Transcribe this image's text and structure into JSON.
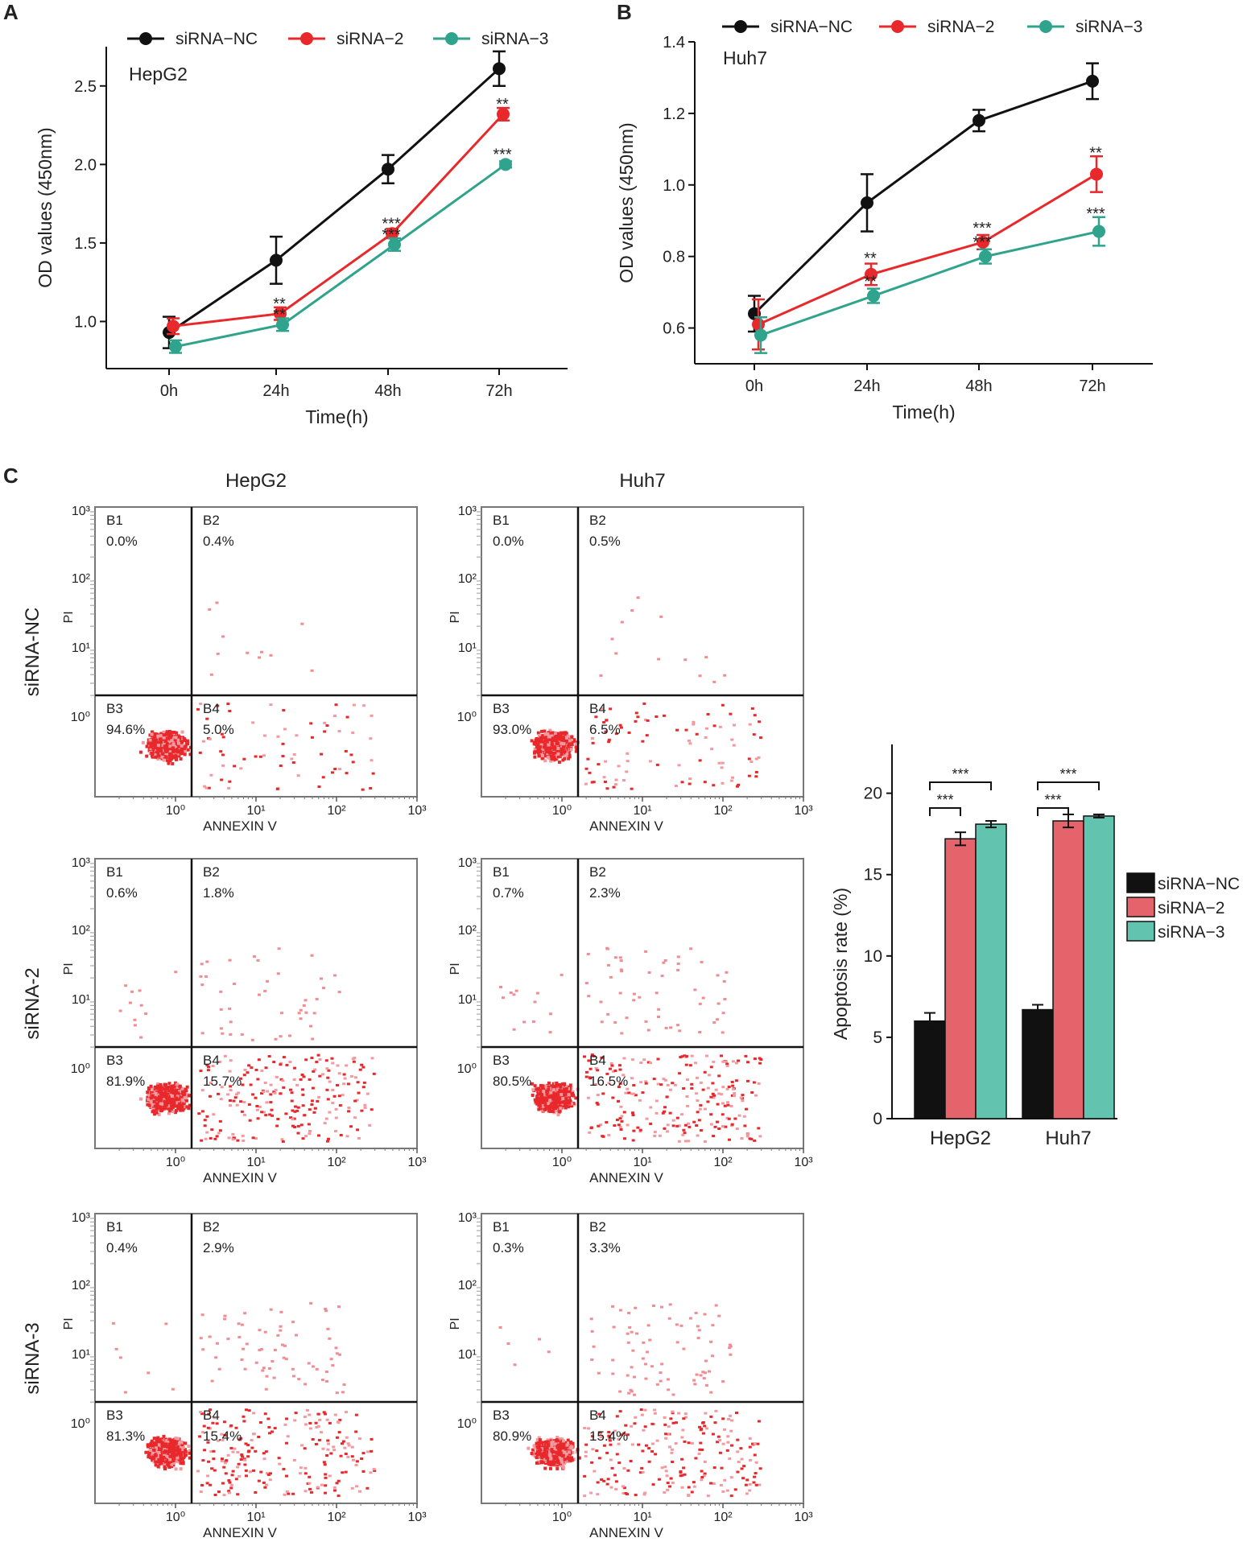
{
  "chart_data": [
    {
      "id": "A",
      "type": "line",
      "panel_label": "A",
      "cell_line": "HepG2",
      "xlabel": "Time(h)",
      "ylabel": "OD values (450nm)",
      "categories": [
        "0h",
        "24h",
        "48h",
        "72h"
      ],
      "ylim": [
        0.7,
        2.75
      ],
      "yticks": [
        1.0,
        1.5,
        2.0,
        2.5
      ],
      "ytick_labels": [
        "1.0",
        "1.5",
        "2.0",
        "2.5"
      ],
      "series": [
        {
          "name": "siRNA−NC",
          "color": "#111111",
          "values": [
            0.93,
            1.39,
            1.97,
            2.61
          ],
          "err": [
            0.1,
            0.15,
            0.09,
            0.11
          ]
        },
        {
          "name": "siRNA−2",
          "color": "#e8282b",
          "values": [
            0.97,
            1.05,
            1.56,
            2.32
          ],
          "err": [
            0.05,
            0.04,
            0.03,
            0.04
          ]
        },
        {
          "name": "siRNA−3",
          "color": "#2fa38c",
          "values": [
            0.84,
            0.98,
            1.49,
            2.0
          ],
          "err": [
            0.04,
            0.04,
            0.04,
            0.02
          ]
        }
      ],
      "annotations": [
        {
          "x": "24h",
          "y": 1.08,
          "text": "**"
        },
        {
          "x": "24h",
          "y": 1.01,
          "text": "**"
        },
        {
          "x": "48h",
          "y": 1.59,
          "text": "***"
        },
        {
          "x": "48h",
          "y": 1.52,
          "text": "***"
        },
        {
          "x": "72h",
          "y": 2.35,
          "text": "**"
        },
        {
          "x": "72h",
          "y": 2.03,
          "text": "***"
        }
      ]
    },
    {
      "id": "B",
      "type": "line",
      "panel_label": "B",
      "cell_line": "Huh7",
      "xlabel": "Time(h)",
      "ylabel": "OD values (450nm)",
      "categories": [
        "0h",
        "24h",
        "48h",
        "72h"
      ],
      "ylim": [
        0.5,
        1.4
      ],
      "yticks": [
        0.6,
        0.8,
        1.0,
        1.2,
        1.4
      ],
      "ytick_labels": [
        "0.6",
        "0.8",
        "1.0",
        "1.2",
        "1.4"
      ],
      "series": [
        {
          "name": "siRNA−NC",
          "color": "#111111",
          "values": [
            0.64,
            0.95,
            1.18,
            1.29
          ],
          "err": [
            0.05,
            0.08,
            0.03,
            0.05
          ]
        },
        {
          "name": "siRNA−2",
          "color": "#e8282b",
          "values": [
            0.61,
            0.75,
            0.84,
            1.03
          ],
          "err": [
            0.07,
            0.03,
            0.02,
            0.05
          ]
        },
        {
          "name": "siRNA−3",
          "color": "#2fa38c",
          "values": [
            0.58,
            0.69,
            0.8,
            0.87
          ],
          "err": [
            0.05,
            0.02,
            0.02,
            0.04
          ]
        }
      ],
      "annotations": [
        {
          "x": "24h",
          "y": 0.78,
          "text": "**"
        },
        {
          "x": "24h",
          "y": 0.715,
          "text": "**"
        },
        {
          "x": "48h",
          "y": 0.865,
          "text": "***"
        },
        {
          "x": "48h",
          "y": 0.825,
          "text": "***"
        },
        {
          "x": "72h",
          "y": 1.075,
          "text": "**"
        },
        {
          "x": "72h",
          "y": 0.905,
          "text": "***"
        }
      ]
    },
    {
      "id": "C-flow",
      "type": "scatter",
      "panel_label": "C",
      "columns": [
        "HepG2",
        "Huh7"
      ],
      "rows": [
        "siRNA-NC",
        "siRNA-2",
        "siRNA-3"
      ],
      "xlabel": "ANNEXIN V",
      "ylabel": "PI",
      "x_decades": [
        "10⁰",
        "10¹",
        "10²",
        "10³"
      ],
      "y_decades": [
        "10⁰",
        "10¹",
        "10²",
        "10³"
      ],
      "quadrant_names": [
        "B1",
        "B2",
        "B3",
        "B4"
      ],
      "plots": [
        {
          "row": "siRNA-NC",
          "col": "HepG2",
          "B1": "0.0%",
          "B2": "0.4%",
          "B3": "94.6%",
          "B4": "5.0%"
        },
        {
          "row": "siRNA-NC",
          "col": "Huh7",
          "B1": "0.0%",
          "B2": "0.5%",
          "B3": "93.0%",
          "B4": "6.5%"
        },
        {
          "row": "siRNA-2",
          "col": "HepG2",
          "B1": "0.6%",
          "B2": "1.8%",
          "B3": "81.9%",
          "B4": "15.7%"
        },
        {
          "row": "siRNA-2",
          "col": "Huh7",
          "B1": "0.7%",
          "B2": "2.3%",
          "B3": "80.5%",
          "B4": "16.5%"
        },
        {
          "row": "siRNA-3",
          "col": "HepG2",
          "B1": "0.4%",
          "B2": "2.9%",
          "B3": "81.3%",
          "B4": "15.4%"
        },
        {
          "row": "siRNA-3",
          "col": "Huh7",
          "B1": "0.3%",
          "B2": "3.3%",
          "B3": "80.9%",
          "B4": "15.4%"
        }
      ]
    },
    {
      "id": "C-bar",
      "type": "bar",
      "ylabel": "Apoptosis rate (%)",
      "categories": [
        "HepG2",
        "Huh7"
      ],
      "ylim": [
        0,
        23
      ],
      "yticks": [
        0,
        5,
        10,
        15,
        20
      ],
      "ytick_labels": [
        "0",
        "5",
        "10",
        "15",
        "20"
      ],
      "series": [
        {
          "name": "siRNA−NC",
          "color": "#111111",
          "values": [
            6.0,
            6.7
          ],
          "err": [
            0.5,
            0.3
          ]
        },
        {
          "name": "siRNA−2",
          "color": "#e5636b",
          "values": [
            17.2,
            18.3
          ],
          "err": [
            0.4,
            0.4
          ]
        },
        {
          "name": "siRNA−3",
          "color": "#62c3ae",
          "values": [
            18.1,
            18.6
          ],
          "err": [
            0.2,
            0.1
          ]
        }
      ],
      "significance": [
        {
          "category": "HepG2",
          "from": 0,
          "to": 1,
          "text": "***"
        },
        {
          "category": "HepG2",
          "from": 0,
          "to": 2,
          "text": "***"
        },
        {
          "category": "Huh7",
          "from": 0,
          "to": 1,
          "text": "***"
        },
        {
          "category": "Huh7",
          "from": 0,
          "to": 2,
          "text": "***"
        }
      ]
    }
  ]
}
